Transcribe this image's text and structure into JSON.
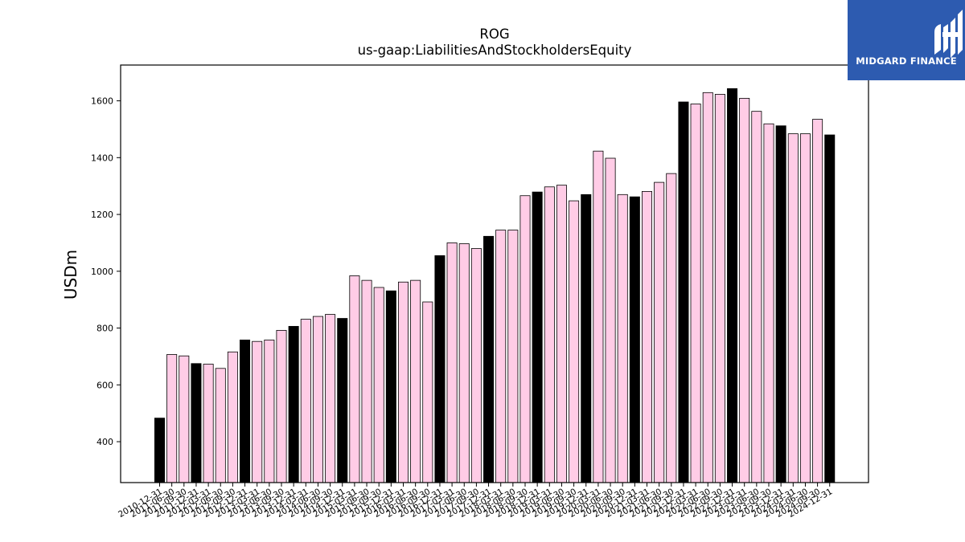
{
  "chart_data": {
    "type": "bar",
    "title": "ROG",
    "subtitle": "us-gaap:LiabilitiesAndStockholdersEquity",
    "xlabel": "",
    "ylabel": "USDm",
    "ylim": [
      256,
      1726
    ],
    "yticks": [
      400,
      600,
      800,
      1000,
      1200,
      1400,
      1600
    ],
    "grid": false,
    "categories": [
      "2010-12-31",
      "2011-06-30",
      "2011-09-30",
      "2011-12-31",
      "2012-03-31",
      "2012-06-30",
      "2012-09-30",
      "2012-12-31",
      "2013-03-31",
      "2013-06-30",
      "2013-09-30",
      "2013-12-31",
      "2014-03-31",
      "2014-06-30",
      "2014-09-30",
      "2014-12-31",
      "2015-03-31",
      "2015-06-30",
      "2015-09-30",
      "2015-12-31",
      "2016-03-31",
      "2016-06-30",
      "2016-09-30",
      "2016-12-31",
      "2017-03-31",
      "2017-06-30",
      "2017-09-30",
      "2017-12-31",
      "2018-03-31",
      "2018-06-30",
      "2018-09-30",
      "2018-12-31",
      "2019-03-31",
      "2019-06-30",
      "2019-09-30",
      "2019-12-31",
      "2020-03-31",
      "2020-06-30",
      "2020-09-30",
      "2020-12-31",
      "2021-03-31",
      "2021-06-30",
      "2021-09-30",
      "2021-12-31",
      "2022-03-31",
      "2022-06-30",
      "2022-09-30",
      "2022-12-31",
      "2023-03-31",
      "2023-06-30",
      "2023-09-30",
      "2023-12-31",
      "2024-03-31",
      "2024-06-30",
      "2024-09-30",
      "2024-12-31"
    ],
    "values": [
      483,
      707,
      702,
      675,
      673,
      658,
      716,
      758,
      753,
      758,
      792,
      806,
      831,
      841,
      848,
      834,
      984,
      968,
      943,
      931,
      962,
      968,
      892,
      1055,
      1100,
      1097,
      1080,
      1123,
      1145,
      1145,
      1266,
      1279,
      1297,
      1303,
      1248,
      1270,
      1423,
      1398,
      1270,
      1262,
      1281,
      1313,
      1344,
      1596,
      1589,
      1629,
      1623,
      1643,
      1609,
      1563,
      1519,
      1512,
      1484,
      1484,
      1535,
      1480
    ],
    "year_end_color": "#000000",
    "quarter_color": "#ffcce6"
  },
  "logo": {
    "text": "MIDGARD FINANCE"
  }
}
